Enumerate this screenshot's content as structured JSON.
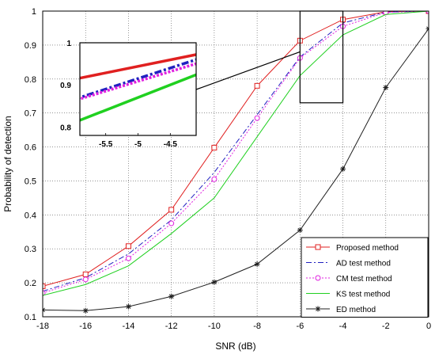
{
  "chart_data": {
    "type": "line",
    "xlabel": "SNR (dB)",
    "ylabel": "Probability of detection",
    "xlim": [
      -18,
      0
    ],
    "ylim": [
      0.1,
      1
    ],
    "x_ticks": [
      "-18",
      "-16",
      "-14",
      "-12",
      "-10",
      "-8",
      "-6",
      "-4",
      "-2",
      "0"
    ],
    "y_ticks": [
      "0.1",
      "0.2",
      "0.3",
      "0.4",
      "0.5",
      "0.6",
      "0.7",
      "0.8",
      "0.9",
      "1"
    ],
    "grid": true,
    "legend_placement": "bottom-right",
    "x": [
      -18,
      -16,
      -14,
      -12,
      -10,
      -8,
      -6,
      -4,
      -2,
      0
    ],
    "series": [
      {
        "name": "Proposed method",
        "color": "#e02020",
        "style": "solid",
        "marker": "square",
        "values": [
          0.19,
          0.225,
          0.308,
          0.415,
          0.598,
          0.78,
          0.913,
          0.975,
          0.998,
          1.0
        ]
      },
      {
        "name": "AD test method",
        "color": "#2020c0",
        "style": "dashdot",
        "marker": "none",
        "values": [
          0.175,
          0.215,
          0.285,
          0.385,
          0.525,
          0.695,
          0.865,
          0.965,
          0.997,
          1.0
        ]
      },
      {
        "name": "CM test method",
        "color": "#e020e0",
        "style": "dotted",
        "marker": "circle",
        "values": [
          0.17,
          0.21,
          0.272,
          0.375,
          0.505,
          0.685,
          0.862,
          0.955,
          0.996,
          1.0
        ]
      },
      {
        "name": "KS test method",
        "color": "#20d020",
        "style": "solid",
        "marker": "none",
        "values": [
          0.163,
          0.195,
          0.25,
          0.345,
          0.45,
          0.63,
          0.81,
          0.93,
          0.99,
          1.0
        ]
      },
      {
        "name": "ED method",
        "color": "#202020",
        "style": "solid",
        "marker": "star",
        "values": [
          0.12,
          0.118,
          0.13,
          0.16,
          0.202,
          0.255,
          0.355,
          0.535,
          0.775,
          0.948
        ]
      }
    ],
    "zoom_box": {
      "xlim": [
        -6,
        -4
      ],
      "ylim": [
        0.73,
        1
      ]
    },
    "inset": {
      "xlim": [
        -5.9,
        -4.1
      ],
      "ylim": [
        0.78,
        1.0
      ],
      "x_ticks": [
        "-5.5",
        "-5",
        "-4.5"
      ],
      "y_ticks": [
        "0.8",
        "0.9",
        "1"
      ]
    }
  }
}
